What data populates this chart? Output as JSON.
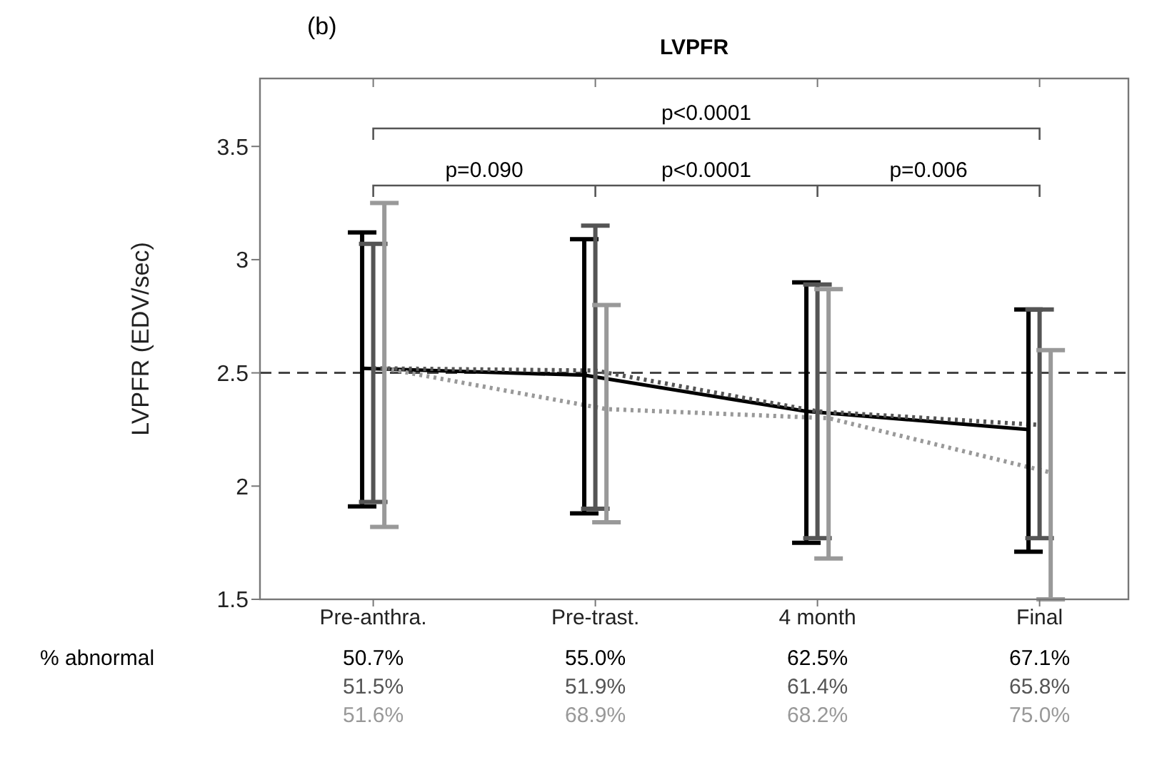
{
  "chart_data": {
    "type": "line",
    "title": "LVPFR",
    "ylabel": "LVPFR (EDV/sec)",
    "categories": [
      "Pre-anthra.",
      "Pre-trast.",
      "4 month",
      "Final"
    ],
    "series": [
      {
        "color": "#000000",
        "line_style": "solid",
        "values": [
          2.52,
          2.49,
          2.33,
          2.25
        ],
        "errors": [
          [
            1.91,
            3.12
          ],
          [
            1.88,
            3.09
          ],
          [
            1.75,
            2.9
          ],
          [
            1.71,
            2.78
          ]
        ]
      },
      {
        "color": "#555555",
        "line_style": "dotted",
        "values": [
          2.52,
          2.51,
          2.33,
          2.27
        ],
        "errors": [
          [
            1.93,
            3.07
          ],
          [
            1.9,
            3.15
          ],
          [
            1.77,
            2.89
          ],
          [
            1.77,
            2.78
          ]
        ]
      },
      {
        "color": "#999999",
        "line_style": "dotted",
        "values": [
          2.52,
          2.34,
          2.3,
          2.06
        ],
        "errors": [
          [
            1.82,
            3.25
          ],
          [
            1.84,
            2.8
          ],
          [
            1.68,
            2.87
          ],
          [
            1.5,
            2.6
          ]
        ]
      }
    ],
    "ylim": [
      1.5,
      3.8
    ],
    "yticks": [
      1.5,
      2,
      2.5,
      3,
      3.5
    ],
    "grid": false,
    "legend": false,
    "marker": "none",
    "ref_lines": [
      {
        "axis": "y",
        "value": 2.5,
        "line_style": "dashed",
        "color": "#444444"
      }
    ],
    "annotations": [
      "(b)",
      "p<0.0001",
      "p=0.090",
      "p<0.0001",
      "p=0.006",
      "% abnormal",
      "50.7%",
      "55.0%",
      "62.5%",
      "67.1%",
      "51.5%",
      "51.9%",
      "61.4%",
      "65.8%",
      "51.6%",
      "68.9%",
      "68.2%",
      "75.0%"
    ]
  }
}
